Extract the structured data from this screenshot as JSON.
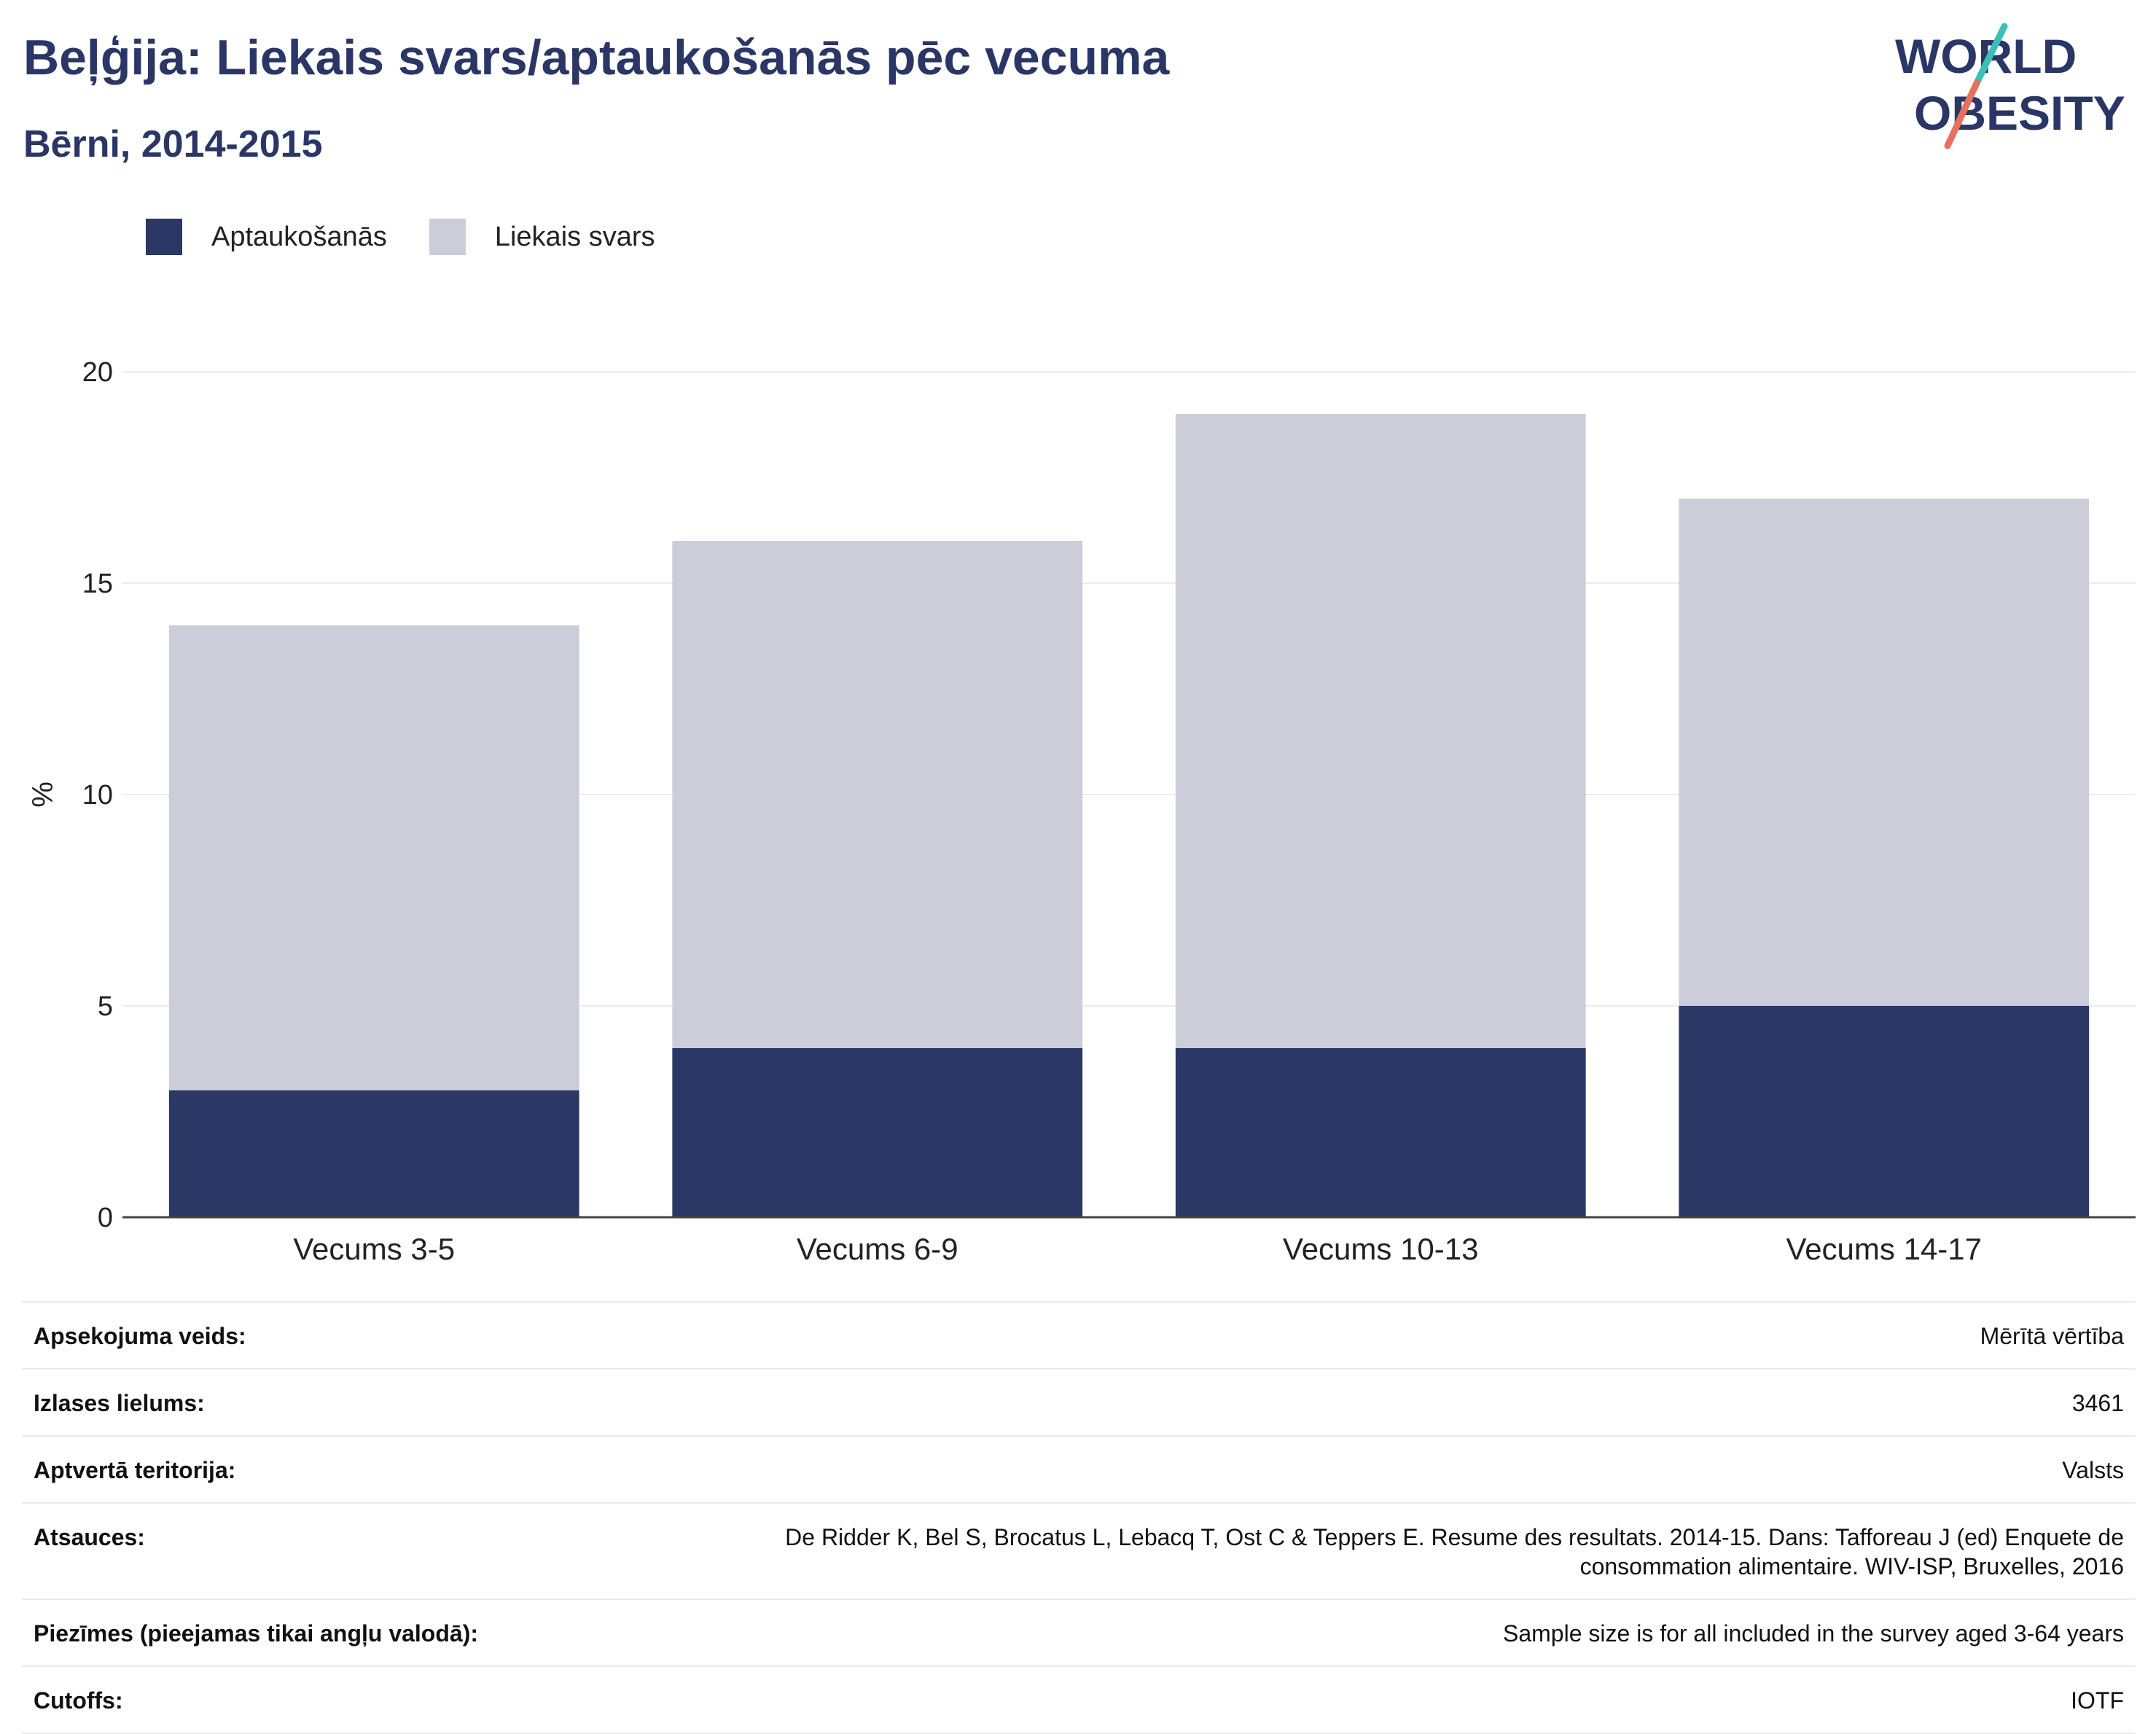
{
  "header": {
    "title": "Beļģija: Liekais svars/aptaukošanās pēc vecuma",
    "subtitle": "Bērni, 2014-2015"
  },
  "logo": {
    "line1": "WORLD",
    "line2": "OBESITY",
    "icon": "world-obesity-logo"
  },
  "colors": {
    "obesity": "#2b3765",
    "overweight": "#cbcdd9",
    "title": "#2a3665",
    "logo_teal": "#3bbfb7",
    "logo_coral": "#e8705e"
  },
  "chart_data": {
    "type": "bar",
    "stacked": true,
    "categories": [
      "Vecums 3-5",
      "Vecums 6-9",
      "Vecums 10-13",
      "Vecums 14-17"
    ],
    "series": [
      {
        "name": "Aptaukošanās",
        "values": [
          3,
          4,
          4,
          5
        ]
      },
      {
        "name": "Liekais svars",
        "values": [
          11,
          12,
          15,
          12
        ]
      }
    ],
    "ylabel": "%",
    "ylim": [
      0,
      20
    ],
    "yticks": [
      0,
      5,
      10,
      15,
      20
    ],
    "grid": true,
    "legend_position": "top-left"
  },
  "info": [
    {
      "label": "Apsekojuma veids:",
      "value": "Mērītā vērtība"
    },
    {
      "label": "Izlases lielums:",
      "value": "3461"
    },
    {
      "label": "Aptvertā teritorija:",
      "value": "Valsts"
    },
    {
      "label": "Atsauces:",
      "value": "De Ridder K, Bel S, Brocatus L, Lebacq T, Ost C & Teppers E. Resume des resultats. 2014-15. Dans: Tafforeau J (ed) Enquete de consommation alimentaire. WIV-ISP, Bruxelles, 2016"
    },
    {
      "label": "Piezīmes (pieejamas tikai angļu valodā):",
      "value": "Sample size is for all included in the survey aged 3-64 years"
    },
    {
      "label": "Cutoffs:",
      "value": "IOTF"
    }
  ]
}
